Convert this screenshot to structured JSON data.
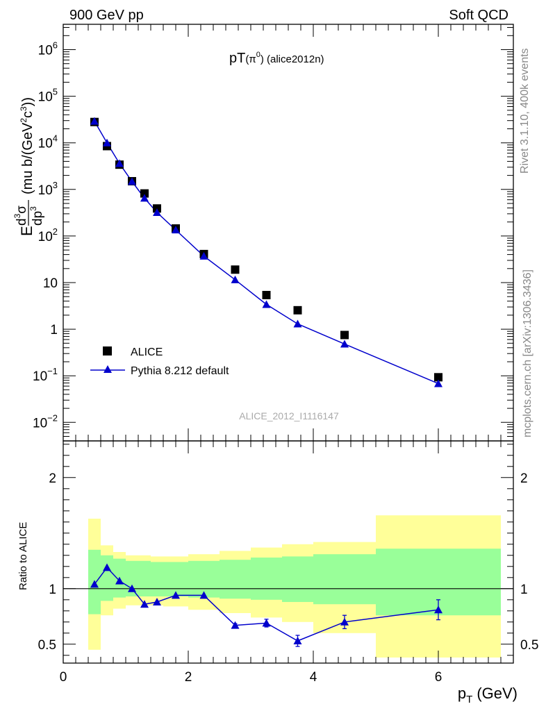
{
  "header": {
    "left": "900 GeV pp",
    "right": "Soft QCD"
  },
  "side_labels": {
    "rivet": "Rivet 3.1.10,  400k events",
    "mcplots": "mcplots.cern.ch [arXiv:1306.3436]"
  },
  "chart_data": [
    {
      "type": "scatter",
      "title": "pT(π⁰) (alice2012n)",
      "title_main": "pT",
      "title_particle": "(π",
      "title_sup": "0",
      "title_tail": ") (alice2012n)",
      "watermark": "ALICE_2012_I1116147",
      "ylabel": "E d³σ/dp³ (mu b/(GeV²c³))",
      "ylabel_parts": {
        "E": "E",
        "num_d": "d",
        "num_sup": "3",
        "num_sigma": "σ",
        "den_dp": "dp",
        "den_sup": "3",
        "unit_open": "(mu b/(GeV",
        "unit_sup2": "2",
        "unit_c": "c",
        "unit_sup3": "3",
        "unit_close": "))"
      },
      "yscale": "log",
      "ylim": [
        0.004,
        3500000
      ],
      "xlim": [
        0,
        7.2
      ],
      "yticks": [
        {
          "value": 1000000,
          "base": "10",
          "exp": "6"
        },
        {
          "value": 100000,
          "base": "10",
          "exp": "5"
        },
        {
          "value": 10000,
          "base": "10",
          "exp": "4"
        },
        {
          "value": 1000,
          "base": "10",
          "exp": "3"
        },
        {
          "value": 100,
          "base": "10",
          "exp": "2"
        },
        {
          "value": 10,
          "base": "10",
          "exp": ""
        },
        {
          "value": 1,
          "base": "1",
          "exp": ""
        },
        {
          "value": 0.1,
          "base": "10",
          "exp": "−1"
        },
        {
          "value": 0.01,
          "base": "10",
          "exp": "−2"
        }
      ],
      "legend_position": "lower-left",
      "series": [
        {
          "name": "ALICE",
          "marker": "square",
          "color": "#000000",
          "x": [
            0.5,
            0.7,
            0.9,
            1.1,
            1.3,
            1.5,
            1.8,
            2.25,
            2.75,
            3.25,
            3.75,
            4.5,
            6.0
          ],
          "y": [
            28000,
            8500,
            3400,
            1500,
            820,
            390,
            145,
            41,
            19,
            5.4,
            2.55,
            0.75,
            0.093
          ]
        },
        {
          "name": "Pythia 8.212 default",
          "marker": "triangle",
          "color": "#0000cc",
          "x": [
            0.5,
            0.7,
            0.9,
            1.1,
            1.3,
            1.5,
            1.8,
            2.25,
            2.75,
            3.25,
            3.75,
            4.5,
            6.0
          ],
          "y": [
            29000,
            10000,
            3600,
            1480,
            650,
            320,
            135,
            37,
            11.5,
            3.4,
            1.3,
            0.48,
            0.068
          ]
        }
      ]
    },
    {
      "type": "line",
      "ylabel": "Ratio to ALICE",
      "xlabel_main": "p",
      "xlabel_sub": "T",
      "xlabel_unit": "(GeV)",
      "xlim": [
        0,
        7.2
      ],
      "ylim": [
        0.33,
        2.33
      ],
      "xticks": [
        0,
        2,
        4,
        6
      ],
      "xtick_labels": [
        "0",
        "2",
        "4",
        "6"
      ],
      "yticks": [
        0.5,
        1,
        2
      ],
      "ytick_labels": [
        "0.5",
        "1",
        "2"
      ],
      "reference_line": 1,
      "bands": {
        "green_color": "#99ff99",
        "yellow_color": "#ffff99",
        "bins": [
          {
            "xlo": 0.4,
            "xhi": 0.6,
            "g": [
              0.77,
              1.35
            ],
            "y": [
              0.45,
              1.63
            ]
          },
          {
            "xlo": 0.6,
            "xhi": 0.8,
            "g": [
              0.89,
              1.3
            ],
            "y": [
              0.76,
              1.39
            ]
          },
          {
            "xlo": 0.8,
            "xhi": 1.0,
            "g": [
              0.92,
              1.27
            ],
            "y": [
              0.82,
              1.33
            ]
          },
          {
            "xlo": 1.0,
            "xhi": 1.2,
            "g": [
              0.93,
              1.25
            ],
            "y": [
              0.85,
              1.3
            ]
          },
          {
            "xlo": 1.2,
            "xhi": 1.4,
            "g": [
              0.93,
              1.25
            ],
            "y": [
              0.85,
              1.3
            ]
          },
          {
            "xlo": 1.4,
            "xhi": 1.6,
            "g": [
              0.93,
              1.24
            ],
            "y": [
              0.85,
              1.29
            ]
          },
          {
            "xlo": 1.6,
            "xhi": 2.0,
            "g": [
              0.93,
              1.24
            ],
            "y": [
              0.84,
              1.29
            ]
          },
          {
            "xlo": 2.0,
            "xhi": 2.5,
            "g": [
              0.92,
              1.25
            ],
            "y": [
              0.81,
              1.31
            ]
          },
          {
            "xlo": 2.5,
            "xhi": 3.0,
            "g": [
              0.91,
              1.26
            ],
            "y": [
              0.78,
              1.34
            ]
          },
          {
            "xlo": 3.0,
            "xhi": 3.5,
            "g": [
              0.9,
              1.28
            ],
            "y": [
              0.74,
              1.37
            ]
          },
          {
            "xlo": 3.5,
            "xhi": 4.0,
            "g": [
              0.88,
              1.29
            ],
            "y": [
              0.7,
              1.4
            ]
          },
          {
            "xlo": 4.0,
            "xhi": 5.0,
            "g": [
              0.86,
              1.31
            ],
            "y": [
              0.6,
              1.42
            ]
          },
          {
            "xlo": 5.0,
            "xhi": 7.0,
            "g": [
              0.76,
              1.36
            ],
            "y": [
              0.38,
              1.66
            ]
          }
        ]
      },
      "series": [
        {
          "name": "Pythia 8.212 default",
          "color": "#0000cc",
          "x": [
            0.5,
            0.7,
            0.9,
            1.1,
            1.3,
            1.5,
            1.8,
            2.25,
            2.75,
            3.25,
            3.75,
            4.5,
            6.0
          ],
          "y": [
            1.04,
            1.19,
            1.07,
            1.0,
            0.86,
            0.88,
            0.94,
            0.94,
            0.67,
            0.69,
            0.53,
            0.7,
            0.81
          ],
          "err": [
            0.01,
            0.01,
            0.01,
            0.01,
            0.01,
            0.01,
            0.01,
            0.01,
            0.015,
            0.035,
            0.05,
            0.06,
            0.09
          ]
        }
      ]
    }
  ]
}
